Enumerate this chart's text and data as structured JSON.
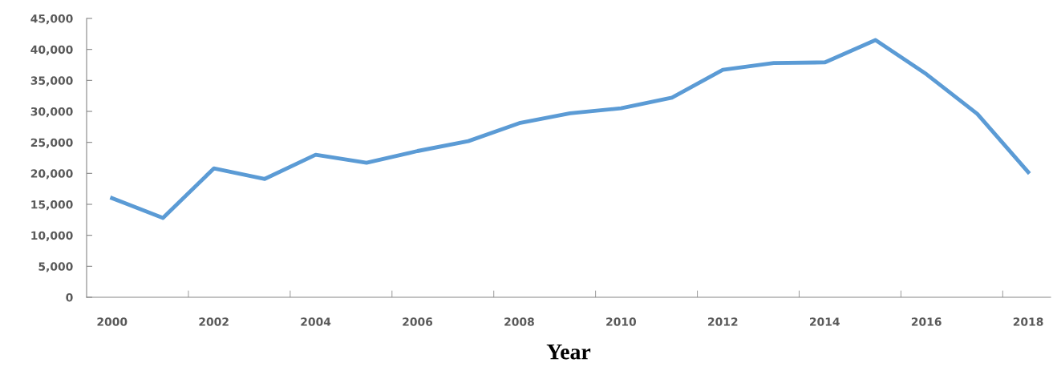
{
  "chart_data": {
    "type": "line",
    "xlabel": "Year",
    "categories": [
      "2000",
      null,
      "2002",
      null,
      "2004",
      null,
      "2006",
      null,
      "2008",
      null,
      "2010",
      null,
      "2012",
      null,
      "2014",
      null,
      "2016",
      null,
      "2018"
    ],
    "series": [
      {
        "color": "#5b9bd5",
        "values": [
          16000,
          12800,
          20800,
          19100,
          23000,
          21700,
          23600,
          25200,
          28100,
          29700,
          30500,
          32200,
          36700,
          37800,
          37900,
          41500,
          36000,
          29600,
          20200
        ]
      }
    ],
    "ylim": [
      0,
      45000
    ],
    "yticks": [
      {
        "value": 0,
        "label": "0"
      },
      {
        "value": 5000,
        "label": "5,000"
      },
      {
        "value": 10000,
        "label": "10,000"
      },
      {
        "value": 15000,
        "label": "15,000"
      },
      {
        "value": 20000,
        "label": "20,000"
      },
      {
        "value": 25000,
        "label": "25,000"
      },
      {
        "value": 30000,
        "label": "30,000"
      },
      {
        "value": 35000,
        "label": "35,000"
      },
      {
        "value": 40000,
        "label": "40,000"
      },
      {
        "value": 45000,
        "label": "45,000"
      }
    ],
    "grid": false,
    "marker": "none",
    "line_style": "solid"
  }
}
